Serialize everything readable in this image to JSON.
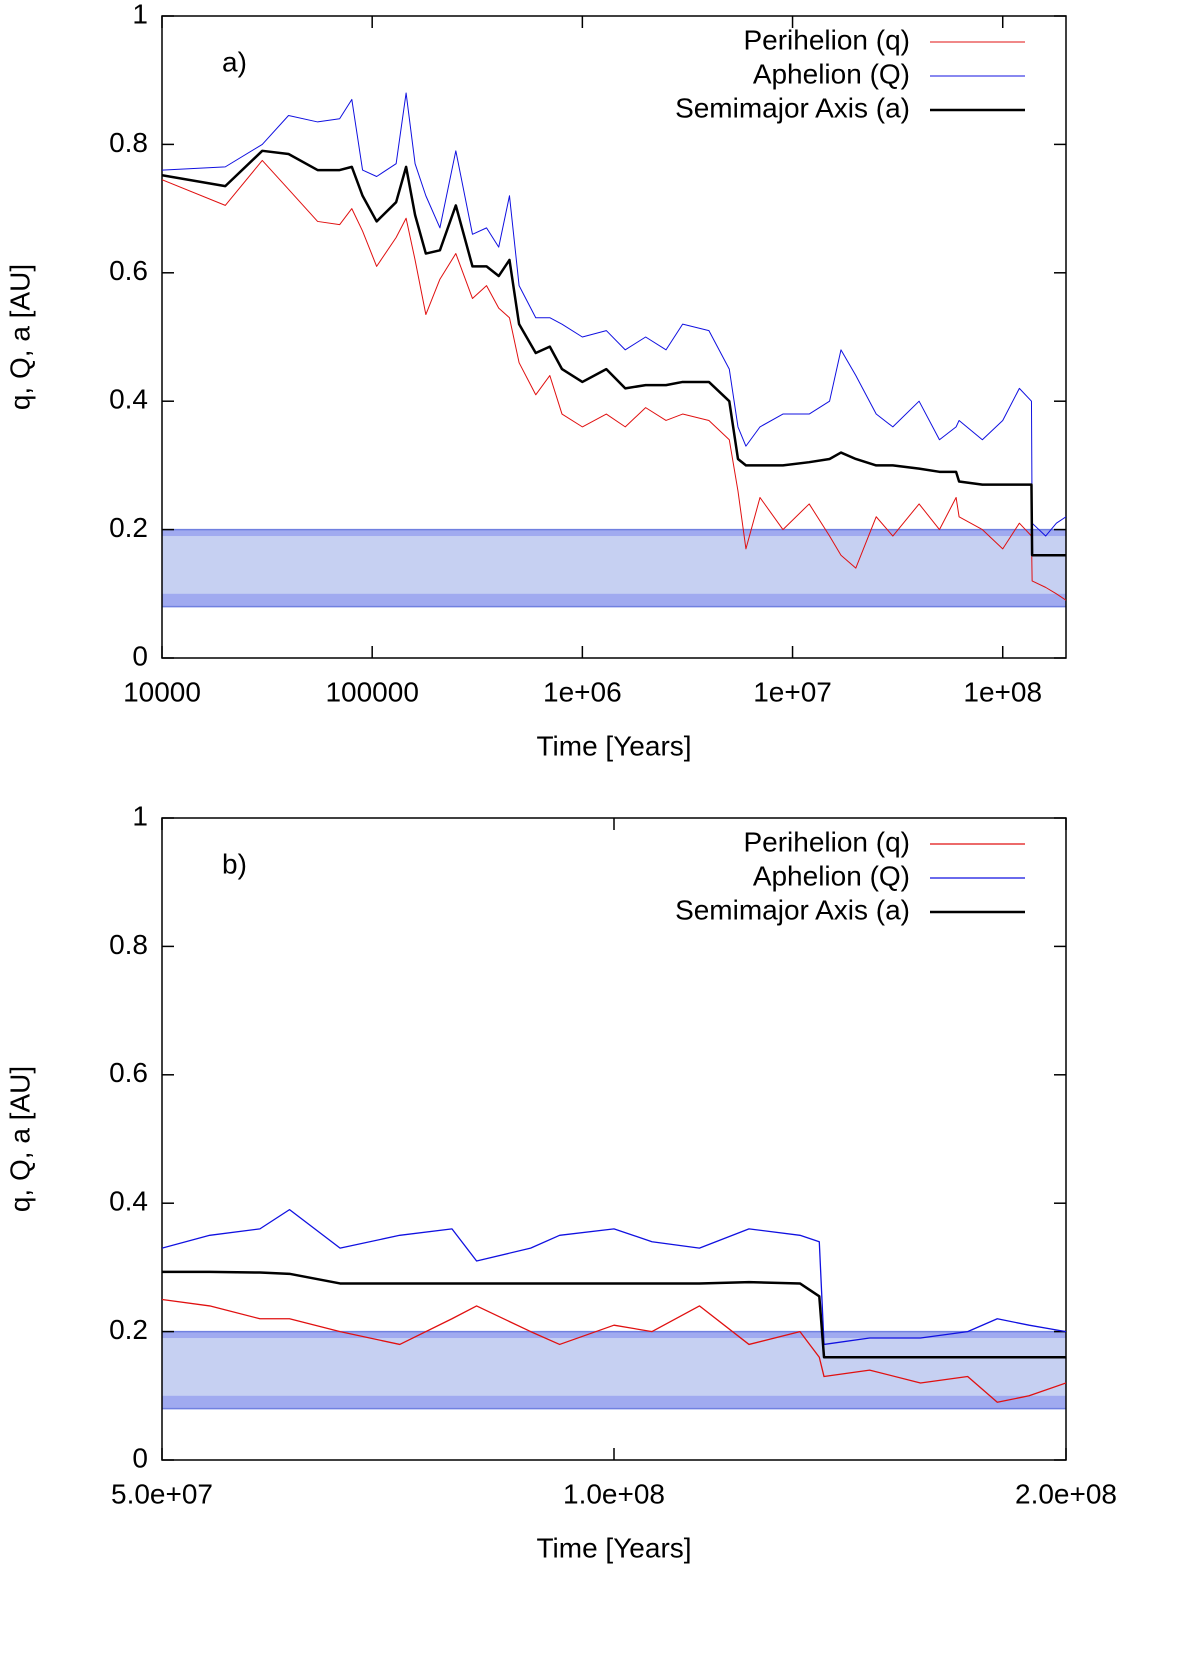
{
  "chart_data": [
    {
      "type": "line",
      "panel_label": "a)",
      "xlabel": "Time [Years]",
      "ylabel": "q, Q, a [AU]",
      "xscale": "log",
      "xlim": [
        10000,
        200000000
      ],
      "ylim": [
        0,
        1
      ],
      "xticks": [
        10000,
        100000,
        {
          "value": 1000000,
          "label": "1e+06"
        },
        {
          "value": 10000000,
          "label": "1e+07"
        },
        {
          "value": 100000000,
          "label": "1e+08"
        }
      ],
      "yticks": [
        0,
        0.2,
        0.4,
        0.6,
        0.8,
        1
      ],
      "legend": "upper right",
      "shaded_regions": [
        {
          "from": 0.08,
          "to": 0.2,
          "color": "#c6d0f2"
        },
        {
          "from": 0.08,
          "to": 0.1,
          "color": "#a0aaf0"
        },
        {
          "from": 0.19,
          "to": 0.2,
          "color": "#a0aaf0"
        }
      ],
      "x": [
        10000,
        20000,
        30000,
        40000,
        55000,
        70000,
        80000,
        90000,
        105000,
        130000,
        145000,
        160000,
        180000,
        210000,
        250000,
        300000,
        350000,
        400000,
        450000,
        500000,
        600000,
        700000,
        800000,
        1000000,
        1300000,
        1600000,
        2000000,
        2500000,
        3000000,
        4000000,
        5000000,
        5500000,
        6000000,
        7000000,
        9000000,
        12000000,
        15000000,
        17000000,
        20000000,
        25000000,
        30000000,
        40000000,
        50000000,
        60000000,
        62000000,
        80000000,
        100000000,
        120000000,
        137000000,
        138000000,
        160000000,
        180000000,
        200000000
      ],
      "series": [
        {
          "name": "Perihelion (q)",
          "color": "#e01010",
          "width": 1,
          "values": [
            0.745,
            0.705,
            0.775,
            0.73,
            0.68,
            0.675,
            0.7,
            0.665,
            0.61,
            0.655,
            0.685,
            0.62,
            0.535,
            0.59,
            0.63,
            0.56,
            0.58,
            0.545,
            0.53,
            0.46,
            0.41,
            0.44,
            0.38,
            0.36,
            0.38,
            0.36,
            0.39,
            0.37,
            0.38,
            0.37,
            0.34,
            0.26,
            0.17,
            0.25,
            0.2,
            0.24,
            0.19,
            0.16,
            0.14,
            0.22,
            0.19,
            0.24,
            0.2,
            0.25,
            0.22,
            0.2,
            0.17,
            0.21,
            0.19,
            0.12,
            0.11,
            0.1,
            0.09
          ]
        },
        {
          "name": "Aphelion (Q)",
          "color": "#1010e0",
          "width": 1,
          "values": [
            0.76,
            0.765,
            0.8,
            0.845,
            0.835,
            0.84,
            0.87,
            0.76,
            0.75,
            0.77,
            0.88,
            0.77,
            0.72,
            0.67,
            0.79,
            0.66,
            0.67,
            0.64,
            0.72,
            0.58,
            0.53,
            0.53,
            0.52,
            0.5,
            0.51,
            0.48,
            0.5,
            0.48,
            0.52,
            0.51,
            0.45,
            0.36,
            0.33,
            0.36,
            0.38,
            0.38,
            0.4,
            0.48,
            0.44,
            0.38,
            0.36,
            0.4,
            0.34,
            0.36,
            0.37,
            0.34,
            0.37,
            0.42,
            0.4,
            0.21,
            0.19,
            0.21,
            0.22
          ]
        },
        {
          "name": "Semimajor Axis (a)",
          "color": "#000000",
          "width": 2.5,
          "values": [
            0.752,
            0.735,
            0.79,
            0.785,
            0.76,
            0.76,
            0.765,
            0.72,
            0.68,
            0.71,
            0.765,
            0.69,
            0.63,
            0.635,
            0.705,
            0.61,
            0.61,
            0.595,
            0.62,
            0.52,
            0.475,
            0.485,
            0.45,
            0.43,
            0.45,
            0.42,
            0.425,
            0.425,
            0.43,
            0.43,
            0.4,
            0.31,
            0.3,
            0.3,
            0.3,
            0.305,
            0.31,
            0.32,
            0.31,
            0.3,
            0.3,
            0.295,
            0.29,
            0.29,
            0.275,
            0.27,
            0.27,
            0.27,
            0.27,
            0.16,
            0.16,
            0.16,
            0.16
          ]
        }
      ]
    },
    {
      "type": "line",
      "panel_label": "b)",
      "xlabel": "Time [Years]",
      "ylabel": "q, Q, a [AU]",
      "xscale": "log",
      "xlim": [
        50000000,
        200000000
      ],
      "ylim": [
        0,
        1
      ],
      "xticks": [
        {
          "value": 50000000,
          "label": "5.0e+07"
        },
        {
          "value": 100000000,
          "label": "1.0e+08"
        },
        {
          "value": 200000000,
          "label": "2.0e+08"
        }
      ],
      "yticks": [
        0,
        0.2,
        0.4,
        0.6,
        0.8,
        1
      ],
      "legend": "upper right",
      "shaded_regions": [
        {
          "from": 0.08,
          "to": 0.2,
          "color": "#c6d0f2"
        },
        {
          "from": 0.08,
          "to": 0.1,
          "color": "#a0aaf0"
        },
        {
          "from": 0.19,
          "to": 0.2,
          "color": "#a0aaf0"
        }
      ],
      "x": [
        50000000,
        53800000,
        58100000,
        60800000,
        65700000,
        72000000,
        78000000,
        81000000,
        88000000,
        92000000,
        100000000,
        106000000,
        114000000,
        123000000,
        133000000,
        137000000,
        138000000,
        148000000,
        160000000,
        172000000,
        180000000,
        189000000,
        200000000
      ],
      "series": [
        {
          "name": "Perihelion (q)",
          "color": "#e01010",
          "width": 1.3,
          "values": [
            0.25,
            0.24,
            0.22,
            0.22,
            0.2,
            0.18,
            0.22,
            0.24,
            0.2,
            0.18,
            0.21,
            0.2,
            0.24,
            0.18,
            0.2,
            0.16,
            0.13,
            0.14,
            0.12,
            0.13,
            0.09,
            0.1,
            0.12
          ]
        },
        {
          "name": "Aphelion (Q)",
          "color": "#1010e0",
          "width": 1.3,
          "values": [
            0.33,
            0.35,
            0.36,
            0.39,
            0.33,
            0.35,
            0.36,
            0.31,
            0.33,
            0.35,
            0.36,
            0.34,
            0.33,
            0.36,
            0.35,
            0.34,
            0.18,
            0.19,
            0.19,
            0.2,
            0.22,
            0.21,
            0.2
          ]
        },
        {
          "name": "Semimajor Axis (a)",
          "color": "#000000",
          "width": 2.5,
          "values": [
            0.293,
            0.293,
            0.292,
            0.29,
            0.275,
            0.275,
            0.275,
            0.275,
            0.275,
            0.275,
            0.275,
            0.275,
            0.275,
            0.277,
            0.275,
            0.255,
            0.16,
            0.16,
            0.16,
            0.16,
            0.16,
            0.16,
            0.16
          ]
        }
      ]
    }
  ]
}
